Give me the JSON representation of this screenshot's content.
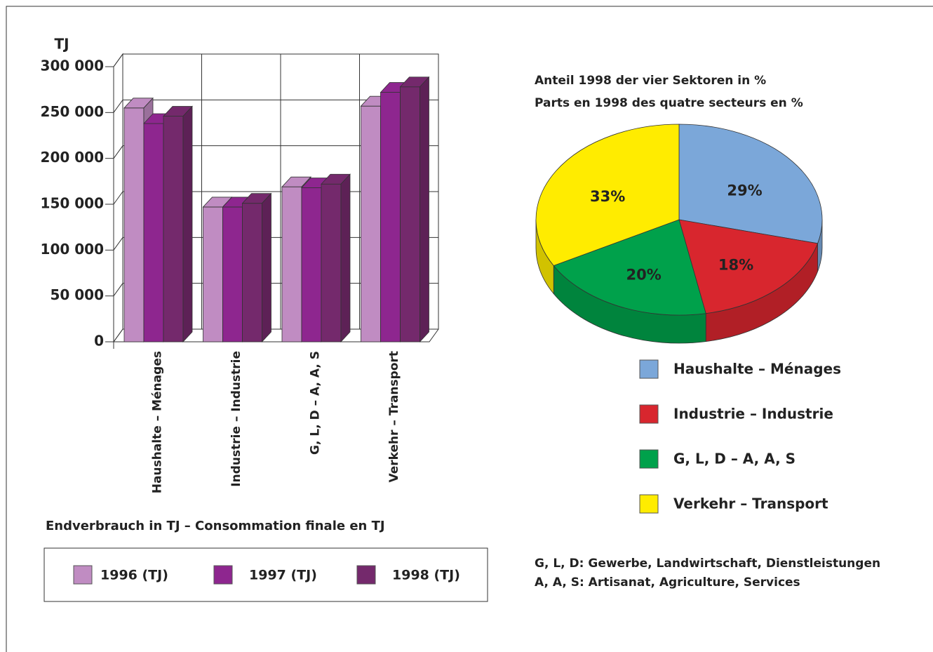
{
  "chart_data": [
    {
      "type": "bar",
      "title": "Endverbrauch in TJ – Consommation finale en TJ",
      "y_label": "TJ",
      "categories": [
        "Haushalte – Ménages",
        "Industrie – Industrie",
        "G, L, D – A, A, S",
        "Verkehr – Transport"
      ],
      "series": [
        {
          "name": "1996 (TJ)",
          "color": "#c08cc2",
          "values": [
            255000,
            147000,
            169000,
            257000
          ]
        },
        {
          "name": "1997 (TJ)",
          "color": "#8e268f",
          "values": [
            238000,
            147000,
            168000,
            272000
          ]
        },
        {
          "name": "1998 (TJ)",
          "color": "#74296c",
          "values": [
            246000,
            151000,
            172000,
            278000
          ]
        }
      ],
      "ylim": [
        0,
        300000
      ],
      "yticks": [
        0,
        {
          "value": 50000,
          "label": "50 000"
        },
        {
          "value": 100000,
          "label": "100 000"
        },
        {
          "value": 150000,
          "label": "150 000"
        },
        {
          "value": 200000,
          "label": "200 000"
        },
        {
          "value": 250000,
          "label": "250 000"
        },
        {
          "value": 300000,
          "label": "300 000"
        }
      ],
      "grid": true
    },
    {
      "type": "pie",
      "title": [
        "Anteil 1998 der vier Sektoren in %",
        "Parts en 1998 des quatre secteurs en %"
      ],
      "categories": [
        "Haushalte – Ménages",
        "Industrie – Industrie",
        "G, L, D – A, A, S",
        "Verkehr – Transport"
      ],
      "values": [
        29,
        18,
        20,
        33
      ],
      "value_labels": [
        "29%",
        "18%",
        "20%",
        "33%"
      ],
      "colors": [
        "#7ba7d9",
        "#d8262e",
        "#00a14b",
        "#ffec00"
      ],
      "footnote": [
        "G, L, D: Gewerbe, Landwirtschaft, Dienstleistungen",
        "A, A, S: Artisanat, Agriculture, Services"
      ]
    }
  ]
}
